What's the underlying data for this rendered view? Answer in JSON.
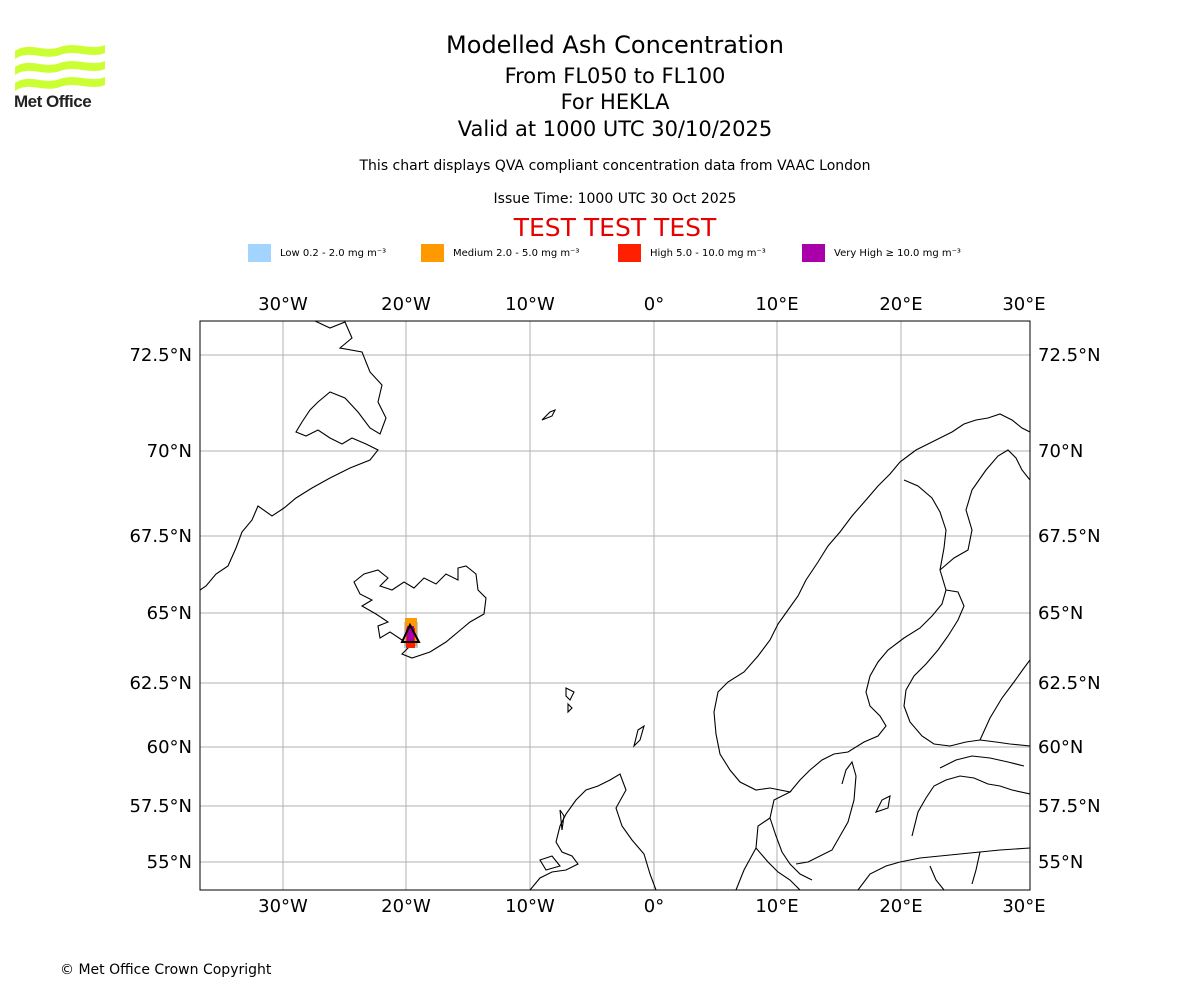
{
  "logo": {
    "text": "Met Office",
    "color": "#ccff33"
  },
  "title": {
    "main": "Modelled Ash Concentration",
    "levels": "From FL050 to FL100",
    "volcano": "For HEKLA",
    "valid": "Valid at 1000 UTC 30/10/2025"
  },
  "subtitle": "This chart displays QVA compliant concentration data from VAAC London",
  "issue_time": "Issue Time: 1000 UTC 30 Oct 2025",
  "test_banner": "TEST TEST TEST",
  "legend": [
    {
      "label": "Low 0.2 - 2.0 mg m⁻³",
      "color": "#a3d3ff"
    },
    {
      "label": "Medium 2.0 - 5.0 mg m⁻³",
      "color": "#ff9900"
    },
    {
      "label": "High 5.0 - 10.0 mg m⁻³",
      "color": "#ff2000"
    },
    {
      "label": "Very High  ≥  10.0 mg m⁻³",
      "color": "#aa00aa"
    }
  ],
  "axes": {
    "lon_labels": [
      "30°W",
      "20°W",
      "10°W",
      "0°",
      "10°E",
      "20°E",
      "30°E"
    ],
    "lat_labels": [
      "72.5°N",
      "70°N",
      "67.5°N",
      "65°N",
      "62.5°N",
      "60°N",
      "57.5°N",
      "55°N"
    ]
  },
  "copyright": "© Met Office Crown Copyright"
}
